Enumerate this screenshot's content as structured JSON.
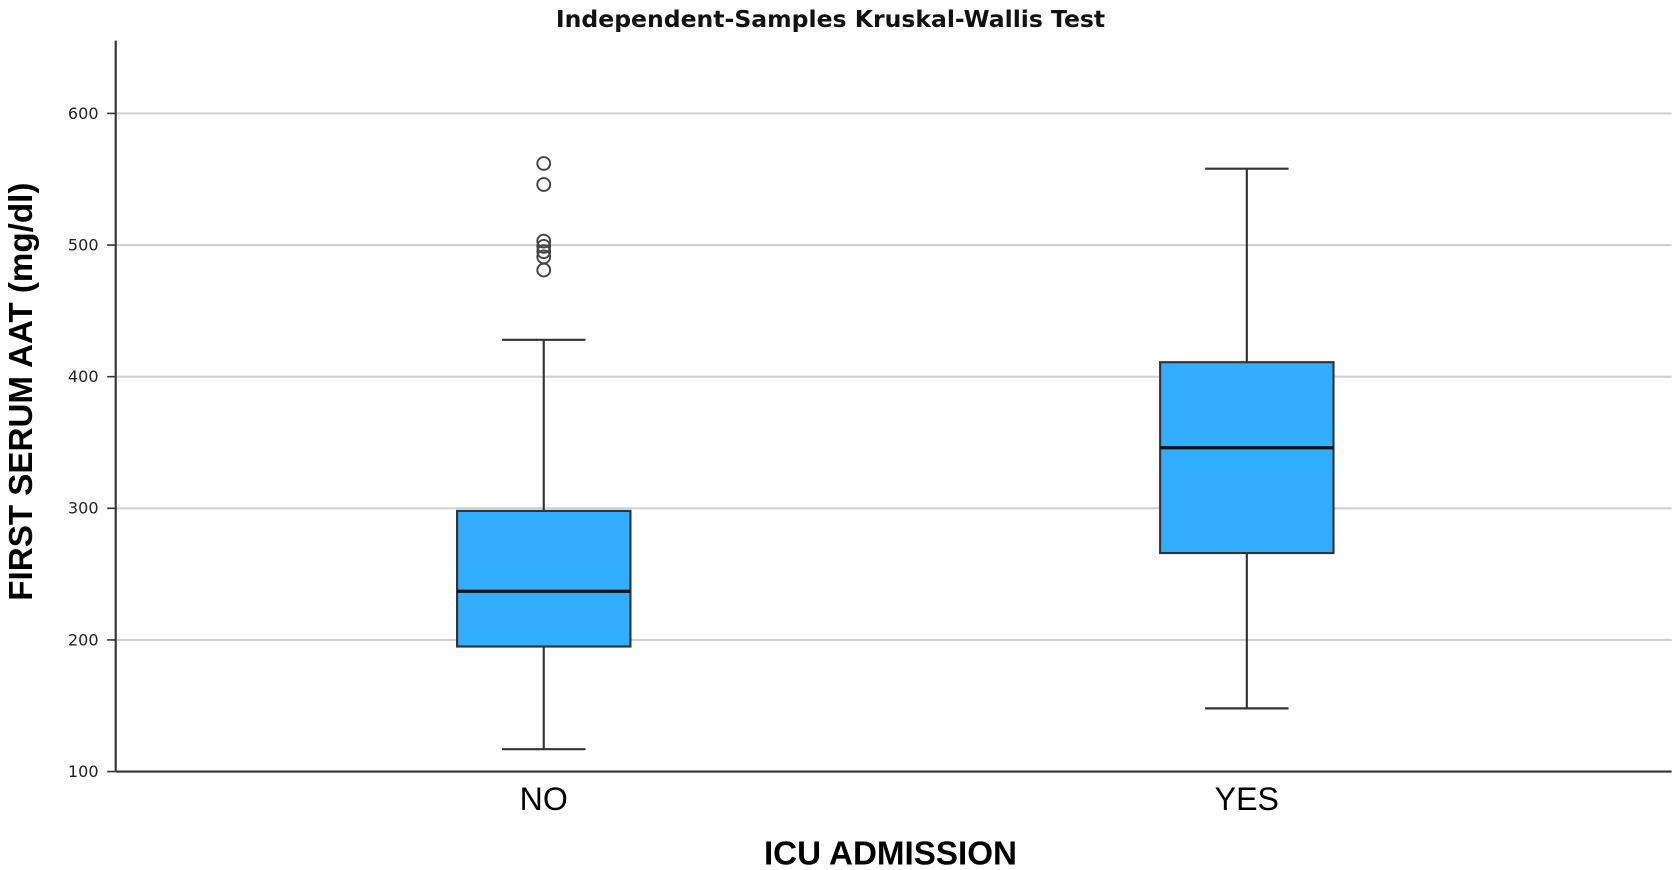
{
  "chart_data": {
    "type": "boxplot",
    "title": "Independent-Samples Kruskal-Wallis Test",
    "xlabel": "ICU ADMISSION",
    "ylabel": "FIRST SERUM AAT (mg/dl)",
    "ylim": [
      100,
      655
    ],
    "yticks": [
      100,
      200,
      300,
      400,
      500,
      600
    ],
    "grid": true,
    "box_color": "#33adff",
    "categories": [
      "NO",
      "YES"
    ],
    "boxes": [
      {
        "category": "NO",
        "whisker_low": 117,
        "q1": 195,
        "median": 237,
        "q3": 298,
        "whisker_high": 428,
        "outliers": [
          562,
          546,
          503,
          499,
          495,
          491,
          481
        ]
      },
      {
        "category": "YES",
        "whisker_low": 148,
        "q1": 266,
        "median": 346,
        "q3": 411,
        "whisker_high": 558,
        "outliers": []
      }
    ]
  }
}
